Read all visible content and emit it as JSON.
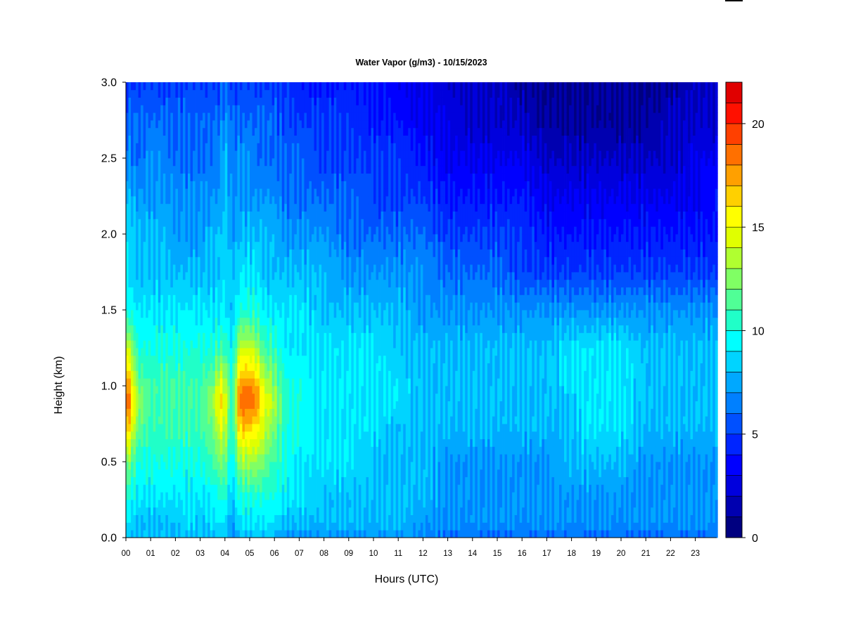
{
  "chart_data": {
    "type": "heatmap",
    "title": "Water Vapor (g/m3) - 10/15/2023",
    "xlabel": "Hours (UTC)",
    "ylabel": "Height (km)",
    "xlim": [
      0,
      23.9
    ],
    "ylim": [
      0.0,
      3.0
    ],
    "x_ticks": [
      "00",
      "01",
      "02",
      "03",
      "04",
      "05",
      "06",
      "07",
      "08",
      "09",
      "10",
      "11",
      "12",
      "13",
      "14",
      "15",
      "16",
      "17",
      "18",
      "19",
      "20",
      "21",
      "22",
      "23"
    ],
    "y_ticks": [
      "0.0",
      "0.5",
      "1.0",
      "1.5",
      "2.0",
      "2.5",
      "3.0"
    ],
    "colorbar": {
      "range": [
        0,
        22
      ],
      "ticks": [
        "0",
        "5",
        "10",
        "15",
        "20"
      ],
      "levels": [
        0,
        1,
        2,
        3,
        4,
        5,
        6,
        7,
        8,
        9,
        10,
        11,
        12,
        13,
        14,
        15,
        16,
        17,
        18,
        19,
        20,
        21,
        22
      ],
      "colors": [
        "#000080",
        "#0000b0",
        "#0000dd",
        "#0000ff",
        "#0025ff",
        "#0050ff",
        "#0080ff",
        "#00a8ff",
        "#00d4ff",
        "#00ffff",
        "#20ffc8",
        "#50ff96",
        "#80ff64",
        "#b0ff30",
        "#e0ff00",
        "#ffff00",
        "#ffd000",
        "#ffa000",
        "#ff7000",
        "#ff4000",
        "#ff1000",
        "#e00000",
        "#b00000",
        "#800000"
      ]
    },
    "x_hours": [
      0,
      0.5,
      1,
      1.5,
      2,
      2.5,
      3,
      3.5,
      3.8,
      4.0,
      4.3,
      4.6,
      5.0,
      5.3,
      5.6,
      5.9,
      6.5,
      7,
      8,
      9,
      10,
      11,
      12,
      13,
      14,
      15,
      16,
      17,
      18,
      18.5,
      19,
      20,
      21,
      22,
      23,
      23.9
    ],
    "heights_km": [
      0.0,
      0.1,
      0.25,
      0.5,
      0.75,
      0.9,
      1.0,
      1.25,
      1.5,
      1.75,
      2.0,
      2.25,
      2.5,
      2.75,
      3.0
    ],
    "profiles": [
      [
        8,
        9,
        10,
        13,
        18,
        20,
        19,
        15,
        10,
        9,
        9,
        8,
        7,
        6,
        5
      ],
      [
        8,
        8,
        9,
        10,
        12,
        13,
        12,
        10,
        9,
        8,
        8,
        7,
        6,
        6,
        5
      ],
      [
        8,
        8,
        9,
        10,
        11,
        11,
        11,
        10,
        9,
        8,
        8,
        7,
        7,
        6,
        5
      ],
      [
        8,
        8,
        9,
        10,
        11,
        11,
        11,
        10,
        9,
        8,
        8,
        7,
        7,
        6,
        5
      ],
      [
        8,
        8,
        9,
        10,
        11,
        11,
        11,
        10,
        9,
        8,
        7,
        7,
        6,
        6,
        5
      ],
      [
        8,
        9,
        9,
        10,
        11,
        11,
        11,
        10,
        9,
        8,
        7,
        7,
        6,
        6,
        5
      ],
      [
        8,
        8,
        9,
        10,
        11,
        11,
        11,
        10,
        9,
        8,
        7,
        7,
        6,
        6,
        5
      ],
      [
        8,
        9,
        9,
        11,
        12,
        13,
        12,
        10,
        9,
        8,
        8,
        7,
        6,
        6,
        5
      ],
      [
        8,
        9,
        10,
        12,
        15,
        16,
        15,
        11,
        9,
        8,
        8,
        7,
        7,
        6,
        5
      ],
      [
        8,
        9,
        10,
        12,
        14,
        15,
        14,
        11,
        9,
        9,
        9,
        8,
        8,
        7,
        6
      ],
      [
        7,
        7,
        8,
        9,
        10,
        10,
        10,
        9,
        8,
        8,
        7,
        7,
        6,
        6,
        5
      ],
      [
        8,
        9,
        10,
        13,
        17,
        19,
        18,
        14,
        10,
        9,
        8,
        7,
        7,
        6,
        5
      ],
      [
        8,
        9,
        10,
        13,
        17,
        19,
        18,
        14,
        10,
        9,
        8,
        7,
        7,
        6,
        5
      ],
      [
        8,
        9,
        10,
        13,
        16,
        18,
        17,
        13,
        10,
        9,
        8,
        7,
        6,
        6,
        5
      ],
      [
        8,
        9,
        10,
        12,
        14,
        15,
        14,
        11,
        9,
        8,
        8,
        7,
        6,
        6,
        5
      ],
      [
        8,
        9,
        10,
        11,
        13,
        14,
        13,
        11,
        9,
        8,
        8,
        7,
        6,
        6,
        5
      ],
      [
        7,
        8,
        9,
        10,
        10,
        10,
        10,
        9,
        9,
        8,
        7,
        6,
        6,
        5,
        5
      ],
      [
        7,
        8,
        9,
        9,
        10,
        10,
        10,
        9,
        9,
        8,
        7,
        6,
        6,
        5,
        4
      ],
      [
        7,
        8,
        8,
        9,
        9,
        9,
        9,
        9,
        8,
        8,
        7,
        6,
        5,
        5,
        4
      ],
      [
        7,
        8,
        8,
        9,
        9,
        9,
        9,
        9,
        8,
        7,
        6,
        6,
        5,
        5,
        4
      ],
      [
        7,
        8,
        8,
        8,
        9,
        9,
        9,
        9,
        8,
        7,
        6,
        5,
        5,
        4,
        4
      ],
      [
        7,
        8,
        8,
        8,
        8,
        9,
        9,
        8,
        8,
        7,
        6,
        5,
        5,
        4,
        3
      ],
      [
        7,
        7,
        8,
        8,
        8,
        8,
        8,
        8,
        7,
        7,
        6,
        5,
        4,
        3,
        3
      ],
      [
        6,
        7,
        7,
        7,
        8,
        8,
        8,
        8,
        7,
        6,
        5,
        4,
        3,
        3,
        2
      ],
      [
        6,
        7,
        7,
        7,
        8,
        8,
        8,
        8,
        7,
        6,
        5,
        4,
        3,
        2,
        2
      ],
      [
        6,
        7,
        7,
        7,
        8,
        8,
        8,
        8,
        7,
        6,
        5,
        4,
        3,
        2,
        2
      ],
      [
        6,
        7,
        7,
        7,
        8,
        8,
        8,
        8,
        7,
        5,
        5,
        4,
        3,
        2,
        1
      ],
      [
        6,
        7,
        7,
        7,
        8,
        8,
        8,
        8,
        7,
        5,
        4,
        3,
        2,
        1,
        1
      ],
      [
        6,
        7,
        7,
        8,
        8,
        8,
        9,
        9,
        7,
        5,
        4,
        3,
        2,
        1,
        1
      ],
      [
        6,
        7,
        7,
        8,
        9,
        9,
        9,
        9,
        7,
        5,
        4,
        3,
        2,
        1,
        1
      ],
      [
        6,
        7,
        7,
        8,
        9,
        9,
        9,
        9,
        7,
        5,
        4,
        3,
        2,
        1,
        1
      ],
      [
        6,
        7,
        7,
        8,
        9,
        9,
        9,
        9,
        7,
        5,
        4,
        3,
        2,
        1,
        1
      ],
      [
        6,
        7,
        7,
        7,
        8,
        8,
        8,
        8,
        7,
        5,
        4,
        3,
        2,
        1,
        1
      ],
      [
        6,
        7,
        7,
        7,
        8,
        8,
        8,
        8,
        7,
        5,
        4,
        3,
        2,
        2,
        1
      ],
      [
        6,
        7,
        7,
        7,
        8,
        8,
        8,
        8,
        7,
        5,
        4,
        3,
        3,
        2,
        2
      ],
      [
        6,
        7,
        7,
        7,
        8,
        8,
        8,
        8,
        7,
        5,
        4,
        4,
        3,
        2,
        2
      ]
    ]
  }
}
